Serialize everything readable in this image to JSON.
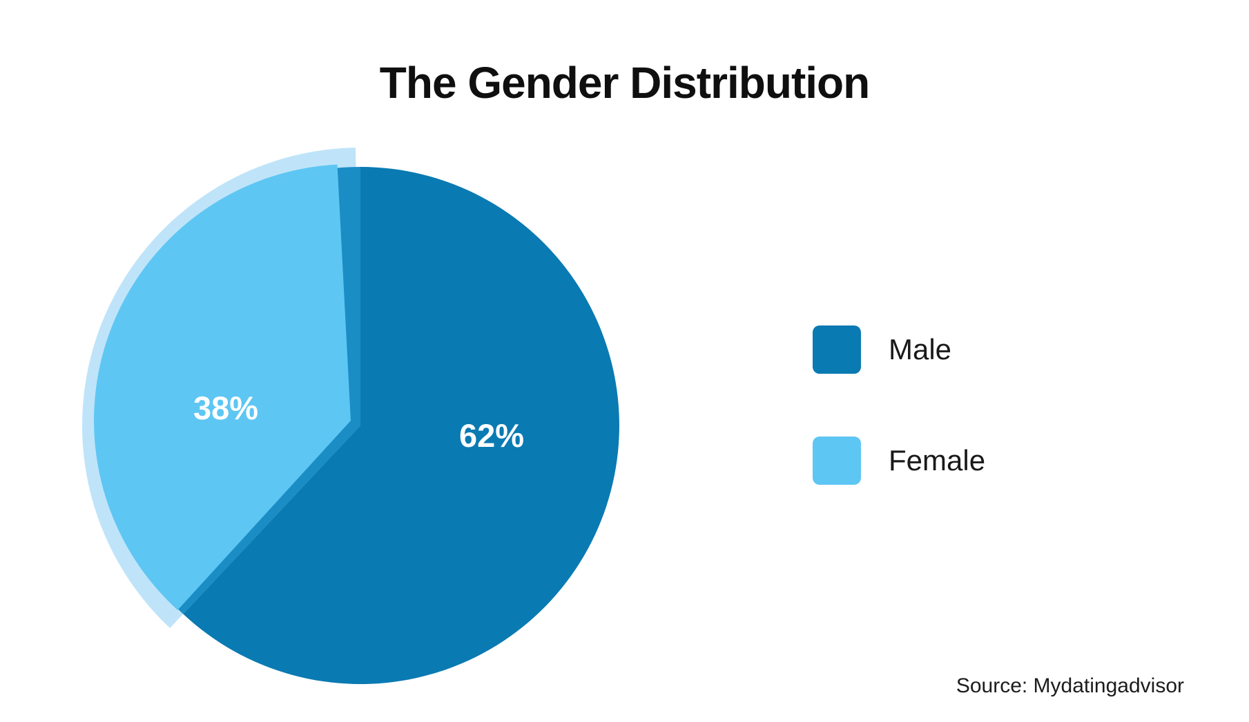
{
  "chart_data": {
    "type": "pie",
    "title": "The Gender Distribution",
    "slices": [
      {
        "name": "Male",
        "value": 62,
        "display": "62%",
        "color": "#0A7AB2"
      },
      {
        "name": "Female",
        "value": 38,
        "display": "38%",
        "color": "#5EC6F3"
      }
    ],
    "start_angle_deg": 0,
    "direction": "clockwise",
    "legend_position": "right",
    "label_color": "#ffffff",
    "accent_colors": {
      "female_under_shade": "#1B8DC5",
      "female_outer_halo": "#BFE4F9"
    }
  },
  "legend": {
    "items": [
      {
        "label": "Male",
        "color": "#0A7AB2"
      },
      {
        "label": "Female",
        "color": "#5EC6F3"
      }
    ]
  },
  "source": {
    "text": "Source: Mydatingadvisor"
  }
}
